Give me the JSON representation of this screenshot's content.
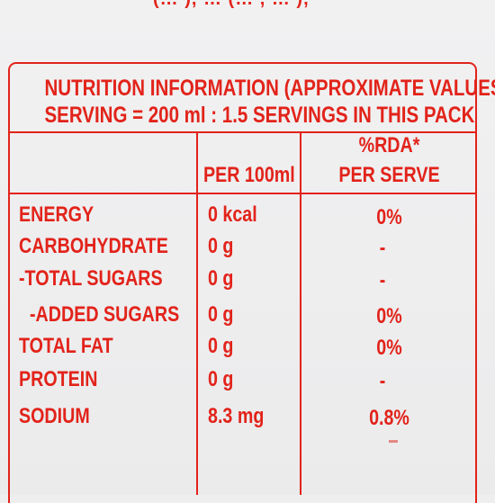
{
  "top_cutoff_text": "(… ), … (… , … ),",
  "header": {
    "title": "NUTRITION INFORMATION (APPROXIMATE VALUES)",
    "serving": "SERVING = 200 ml : 1.5 SERVINGS IN THIS PACK"
  },
  "columns": {
    "per_100ml": "PER 100ml",
    "rda_line1": "%RDA*",
    "rda_line2": "PER SERVE"
  },
  "rows": [
    {
      "nutrient": "ENERGY",
      "per_100ml": "0 kcal",
      "rda": "0%"
    },
    {
      "nutrient": "CARBOHYDRATE",
      "per_100ml": "0 g",
      "rda": "-"
    },
    {
      "nutrient": "-TOTAL SUGARS",
      "per_100ml": "0 g",
      "rda": "-"
    },
    {
      "nutrient": "-ADDED SUGARS",
      "per_100ml": "0 g",
      "rda": "0%"
    },
    {
      "nutrient": "TOTAL FAT",
      "per_100ml": "0 g",
      "rda": "0%"
    },
    {
      "nutrient": "PROTEIN",
      "per_100ml": "0 g",
      "rda": "-"
    },
    {
      "nutrient": "SODIUM",
      "per_100ml": "8.3 mg",
      "rda": "0.8%"
    }
  ],
  "colors": {
    "ink": "#e2231a",
    "background": "#eeeeef"
  }
}
